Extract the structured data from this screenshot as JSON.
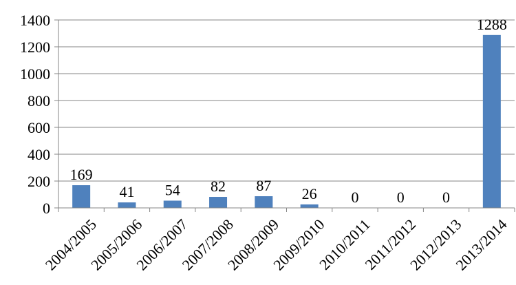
{
  "chart_data": {
    "type": "bar",
    "categories": [
      "2004/2005",
      "2005/2006",
      "2006/2007",
      "2007/2008",
      "2008/2009",
      "2009/2010",
      "2010/2011",
      "2011/2012",
      "2012/2013",
      "2013/2014"
    ],
    "values": [
      169,
      41,
      54,
      82,
      87,
      26,
      0,
      0,
      0,
      1288
    ],
    "data_labels": [
      "169",
      "41",
      "54",
      "82",
      "87",
      "26",
      "0",
      "0",
      "0",
      "1288"
    ],
    "y_ticks": [
      0,
      200,
      400,
      600,
      800,
      1000,
      1200,
      1400
    ],
    "y_tick_labels": [
      "0",
      "200",
      "400",
      "600",
      "800",
      "1000",
      "1200",
      "1400"
    ],
    "ylim": [
      0,
      1400
    ],
    "title": "",
    "xlabel": "",
    "ylabel": "",
    "grid": true,
    "legend": "none",
    "bar_color": "#4f81bd",
    "grid_color": "#868686"
  }
}
